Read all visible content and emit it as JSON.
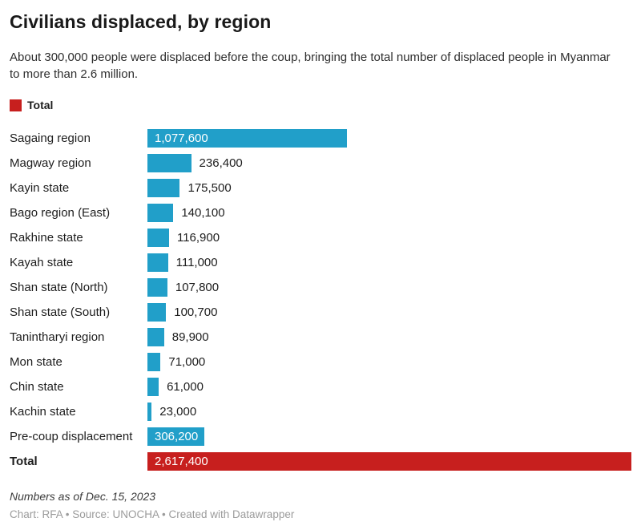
{
  "header": {
    "title": "Civilians displaced, by region",
    "subtitle": "About 300,000 people were displaced before the coup, bringing the total number of displaced people in Myanmar to more than 2.6 million."
  },
  "legend": {
    "label": "Total",
    "swatch_color": "#c71f1e"
  },
  "chart_data": {
    "type": "bar",
    "orientation": "horizontal",
    "title": "Civilians displaced, by region",
    "value_axis_max": 2617400,
    "grid": false,
    "bar_color": "#219fc9",
    "total_bar_color": "#c71f1e",
    "inside_label_color": "#ffffff",
    "categories": [
      "Sagaing region",
      "Magway region",
      "Kayin state",
      "Bago region (East)",
      "Rakhine state",
      "Kayah state",
      "Shan state (North)",
      "Shan state (South)",
      "Tanintharyi region",
      "Mon state",
      "Chin state",
      "Kachin state",
      "Pre-coup displacement",
      "Total"
    ],
    "values": [
      1077600,
      236400,
      175500,
      140100,
      116900,
      111000,
      107800,
      100700,
      89900,
      71000,
      61000,
      23000,
      306200,
      2617400
    ],
    "rows": [
      {
        "label": "Sagaing region",
        "value": 1077600,
        "display": "1,077,600",
        "value_inside": true,
        "is_total": false
      },
      {
        "label": "Magway region",
        "value": 236400,
        "display": "236,400",
        "value_inside": false,
        "is_total": false
      },
      {
        "label": "Kayin state",
        "value": 175500,
        "display": "175,500",
        "value_inside": false,
        "is_total": false
      },
      {
        "label": "Bago region (East)",
        "value": 140100,
        "display": "140,100",
        "value_inside": false,
        "is_total": false
      },
      {
        "label": "Rakhine state",
        "value": 116900,
        "display": "116,900",
        "value_inside": false,
        "is_total": false
      },
      {
        "label": "Kayah state",
        "value": 111000,
        "display": "111,000",
        "value_inside": false,
        "is_total": false
      },
      {
        "label": "Shan state (North)",
        "value": 107800,
        "display": "107,800",
        "value_inside": false,
        "is_total": false
      },
      {
        "label": "Shan state (South)",
        "value": 100700,
        "display": "100,700",
        "value_inside": false,
        "is_total": false
      },
      {
        "label": "Tanintharyi region",
        "value": 89900,
        "display": "89,900",
        "value_inside": false,
        "is_total": false
      },
      {
        "label": "Mon state",
        "value": 71000,
        "display": "71,000",
        "value_inside": false,
        "is_total": false
      },
      {
        "label": "Chin state",
        "value": 61000,
        "display": "61,000",
        "value_inside": false,
        "is_total": false
      },
      {
        "label": "Kachin state",
        "value": 23000,
        "display": "23,000",
        "value_inside": false,
        "is_total": false
      },
      {
        "label": "Pre-coup displacement",
        "value": 306200,
        "display": "306,200",
        "value_inside": true,
        "is_total": false
      },
      {
        "label": "Total",
        "value": 2617400,
        "display": "2,617,400",
        "value_inside": true,
        "is_total": true
      }
    ]
  },
  "footer": {
    "notes": "Numbers as of Dec. 15, 2023",
    "credit": "Chart: RFA • Source: UNOCHA • Created with Datawrapper"
  }
}
